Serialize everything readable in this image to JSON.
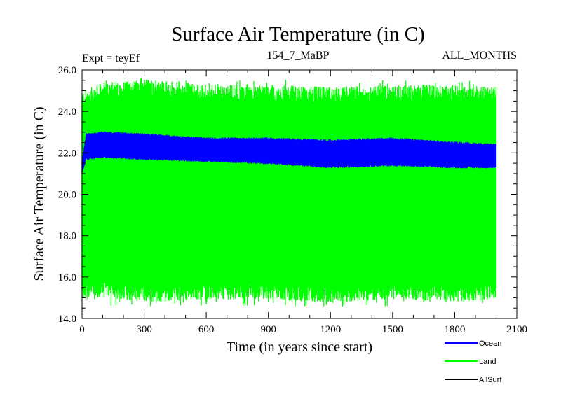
{
  "chart_data": {
    "type": "line",
    "title": "Surface Air Temperature (in C)",
    "subtitle_left": "Expt = teyEf",
    "subtitle_center": "154_7_MaBP",
    "subtitle_right": "ALL_MONTHS",
    "xlabel": "Time (in years since start)",
    "ylabel": "Surface Air Temperature (in C)",
    "xlim": [
      0,
      2100
    ],
    "ylim": [
      14.0,
      26.0
    ],
    "x_ticks": [
      0,
      300,
      600,
      900,
      1200,
      1500,
      1800,
      2100
    ],
    "x_tick_labels": [
      "0",
      "300",
      "600",
      "900",
      "1200",
      "1500",
      "1800",
      "2100"
    ],
    "y_ticks": [
      14.0,
      16.0,
      18.0,
      20.0,
      22.0,
      24.0,
      26.0
    ],
    "y_tick_labels": [
      "14.0",
      "16.0",
      "18.0",
      "20.0",
      "22.0",
      "24.0",
      "26.0"
    ],
    "x_minor_step": 100,
    "y_minor_step": 0.5,
    "grid": false,
    "legend_position": "bottom-right",
    "series": [
      {
        "name": "Land",
        "color": "#00ff00",
        "x_range": [
          0,
          2000
        ],
        "envelope_x": [
          0,
          100,
          300,
          600,
          900,
          1200,
          1500,
          1800,
          2000
        ],
        "upper": [
          24.6,
          25.0,
          25.2,
          24.9,
          24.9,
          24.8,
          24.9,
          24.9,
          24.8
        ],
        "lower": [
          15.2,
          15.4,
          15.2,
          15.3,
          15.3,
          15.1,
          15.3,
          15.2,
          15.3
        ],
        "spike_max": 25.6,
        "spike_min": 14.5
      },
      {
        "name": "Ocean",
        "color": "#0000ff",
        "x_range": [
          0,
          2000
        ],
        "envelope_x": [
          0,
          20,
          100,
          300,
          600,
          900,
          1200,
          1500,
          1800,
          2000
        ],
        "upper": [
          21.6,
          22.9,
          23.0,
          22.9,
          22.7,
          22.7,
          22.6,
          22.7,
          22.5,
          22.4
        ],
        "lower": [
          21.0,
          21.7,
          21.8,
          21.7,
          21.6,
          21.5,
          21.3,
          21.4,
          21.3,
          21.3
        ]
      },
      {
        "name": "AllSurf",
        "color": "#000000",
        "x_range": [
          0,
          2000
        ],
        "envelope_x": [],
        "upper": [],
        "lower": []
      }
    ]
  }
}
